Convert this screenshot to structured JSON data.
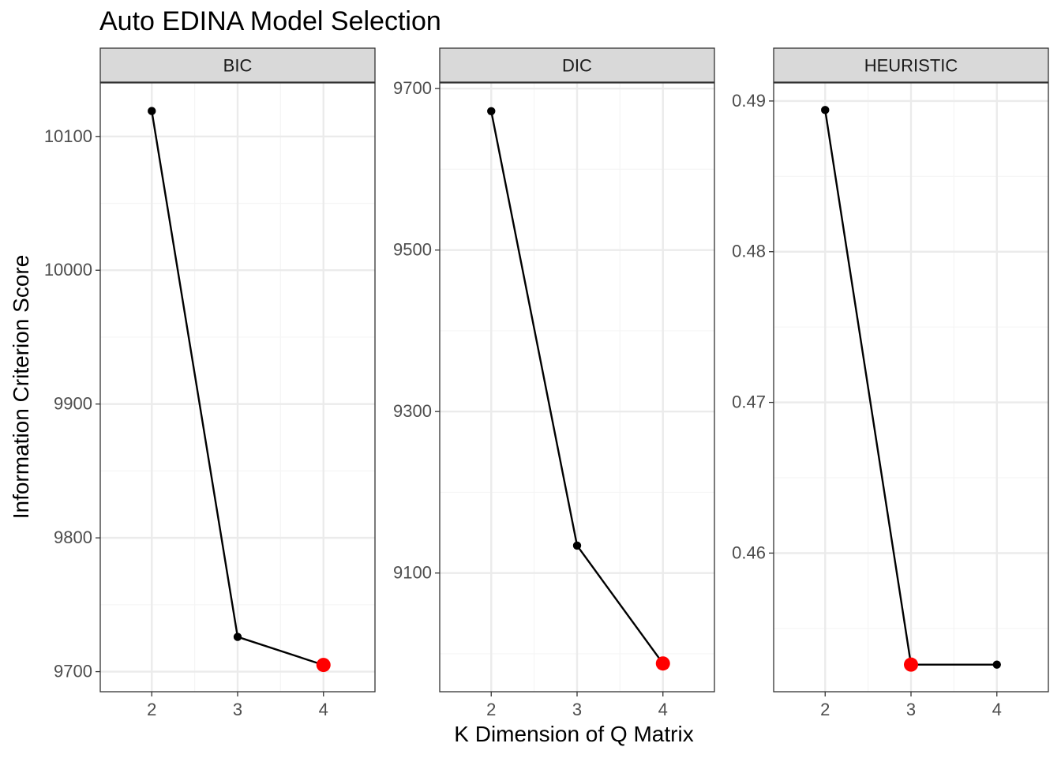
{
  "chart_data": {
    "type": "line",
    "title": "Auto EDINA Model Selection",
    "xlabel": "K Dimension of Q Matrix",
    "ylabel": "Information Criterion Score",
    "x": [
      2,
      3,
      4
    ],
    "xlim": [
      1.4,
      4.6
    ],
    "grid": true,
    "legend": "none",
    "point_color": "#000000",
    "line_color": "#000000",
    "highlight_color": "#ff0000",
    "strip_fill": "#d9d9d9",
    "panel_border": "#333333",
    "grid_major": "#ebebeb",
    "grid_minor": "#f5f5f5",
    "panels": [
      {
        "name": "BIC",
        "y": [
          10119,
          9726,
          9705
        ],
        "best_index": 2,
        "ylim": [
          9685,
          10140
        ],
        "yticks": [
          9700,
          9800,
          9900,
          10000,
          10100
        ],
        "ytick_labels": [
          "9700",
          "9800",
          "9900",
          "10000",
          "10100"
        ]
      },
      {
        "name": "DIC",
        "y": [
          9672,
          9134,
          8988
        ],
        "best_index": 2,
        "ylim": [
          8953,
          9707
        ],
        "yticks": [
          9100,
          9300,
          9500,
          9700
        ],
        "ytick_labels": [
          "9100",
          "9300",
          "9500",
          "9700"
        ]
      },
      {
        "name": "HEURISTIC",
        "y": [
          0.4894,
          0.4526,
          0.4526
        ],
        "best_index": 1,
        "ylim": [
          0.4508,
          0.4912
        ],
        "yticks": [
          0.46,
          0.47,
          0.48,
          0.49
        ],
        "ytick_labels": [
          "0.46",
          "0.47",
          "0.48",
          "0.49"
        ]
      }
    ]
  }
}
